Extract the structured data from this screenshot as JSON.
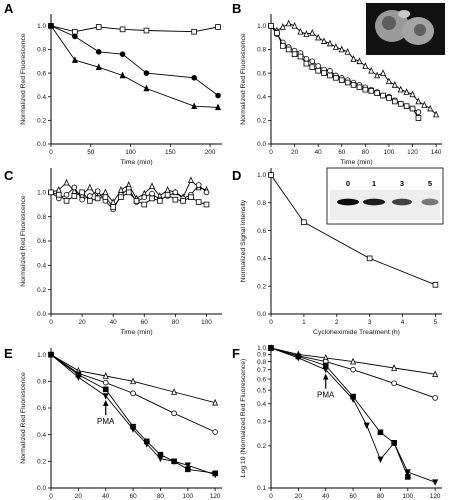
{
  "chart_data": [
    {
      "panel": "A",
      "type": "line",
      "xlabel": "Time (min)",
      "ylabel": "Normalized Red Fluorescence",
      "xlim": [
        0,
        215
      ],
      "ylim": [
        0.0,
        1.1
      ],
      "xticks": [
        "0",
        "50",
        "100",
        "150",
        "200"
      ],
      "yticks": [
        "0.0",
        "0.2",
        "0.4",
        "0.6",
        "0.8",
        "1.0"
      ],
      "series": [
        {
          "marker": "square-open",
          "x": [
            0,
            30,
            60,
            90,
            120,
            180,
            210
          ],
          "y": [
            1.0,
            0.95,
            0.99,
            0.97,
            0.96,
            0.95,
            0.99
          ]
        },
        {
          "marker": "circle-filled",
          "x": [
            0,
            30,
            60,
            90,
            120,
            180,
            210
          ],
          "y": [
            1.0,
            0.91,
            0.78,
            0.76,
            0.6,
            0.56,
            0.41
          ]
        },
        {
          "marker": "triangle-filled",
          "x": [
            0,
            30,
            60,
            90,
            120,
            180,
            210
          ],
          "y": [
            1.0,
            0.71,
            0.65,
            0.58,
            0.47,
            0.32,
            0.31
          ]
        }
      ]
    },
    {
      "panel": "B",
      "type": "line",
      "xlabel": "Time (min)",
      "ylabel": "Normalized Red Fluorescence",
      "xlim": [
        0,
        145
      ],
      "ylim": [
        0.0,
        1.1
      ],
      "xticks": [
        "0",
        "20",
        "40",
        "60",
        "80",
        "100",
        "120",
        "140"
      ],
      "yticks": [
        "0.0",
        "0.2",
        "0.4",
        "0.6",
        "0.8",
        "1.0"
      ],
      "series": [
        {
          "marker": "triangle-open",
          "x": [
            0,
            5,
            10,
            15,
            20,
            25,
            30,
            35,
            40,
            45,
            50,
            55,
            60,
            65,
            70,
            75,
            80,
            85,
            90,
            95,
            100,
            105,
            110,
            115,
            120,
            125,
            130,
            135,
            140
          ],
          "y": [
            1.0,
            0.96,
            0.99,
            1.02,
            1.0,
            0.95,
            0.93,
            0.94,
            0.9,
            0.87,
            0.85,
            0.82,
            0.8,
            0.78,
            0.72,
            0.7,
            0.66,
            0.62,
            0.58,
            0.6,
            0.53,
            0.5,
            0.46,
            0.44,
            0.42,
            0.36,
            0.33,
            0.3,
            0.25
          ]
        },
        {
          "marker": "circle-open",
          "x": [
            0,
            5,
            10,
            15,
            20,
            25,
            30,
            35,
            40,
            45,
            50,
            55,
            60,
            65,
            70,
            75,
            80,
            85,
            90,
            95,
            100,
            105,
            110,
            115,
            120,
            125
          ],
          "y": [
            1.0,
            0.93,
            0.86,
            0.82,
            0.79,
            0.77,
            0.72,
            0.7,
            0.66,
            0.63,
            0.62,
            0.58,
            0.56,
            0.54,
            0.52,
            0.5,
            0.48,
            0.46,
            0.44,
            0.41,
            0.4,
            0.37,
            0.34,
            0.32,
            0.3,
            0.27
          ]
        },
        {
          "marker": "square-open",
          "x": [
            0,
            5,
            10,
            15,
            20,
            25,
            30,
            35,
            40,
            45,
            50,
            55,
            60,
            65,
            70,
            75,
            80,
            85,
            90,
            95,
            100,
            105,
            110,
            115,
            120,
            125
          ],
          "y": [
            1.0,
            0.94,
            0.83,
            0.8,
            0.76,
            0.74,
            0.68,
            0.65,
            0.62,
            0.6,
            0.58,
            0.56,
            0.54,
            0.52,
            0.5,
            0.48,
            0.46,
            0.45,
            0.43,
            0.41,
            0.39,
            0.36,
            0.34,
            0.32,
            0.3,
            0.22
          ]
        }
      ]
    },
    {
      "panel": "C",
      "type": "line",
      "xlabel": "Time (min)",
      "ylabel": "Normalized Red Fluorescence",
      "xlim": [
        0,
        110
      ],
      "ylim": [
        0.0,
        1.2
      ],
      "xticks": [
        "0",
        "20",
        "40",
        "60",
        "80",
        "100"
      ],
      "yticks": [
        "0.0",
        "0.2",
        "0.4",
        "0.6",
        "0.8",
        "1.0"
      ],
      "series": [
        {
          "marker": "triangle-open",
          "x": [
            0,
            5,
            10,
            15,
            20,
            25,
            30,
            35,
            40,
            45,
            50,
            55,
            60,
            65,
            70,
            75,
            80,
            85,
            90,
            95,
            100
          ],
          "y": [
            1.0,
            1.02,
            1.08,
            1.01,
            0.98,
            1.04,
            0.96,
            1.0,
            0.92,
            1.02,
            1.06,
            0.95,
            0.99,
            1.05,
            0.97,
            1.02,
            1.0,
            0.96,
            1.1,
            1.04,
            1.02
          ]
        },
        {
          "marker": "circle-open",
          "x": [
            0,
            5,
            10,
            15,
            20,
            25,
            30,
            35,
            40,
            45,
            50,
            55,
            60,
            65,
            70,
            75,
            80,
            85,
            90,
            95,
            100
          ],
          "y": [
            1.0,
            0.95,
            0.98,
            1.04,
            0.94,
            0.97,
            1.01,
            0.93,
            0.86,
            0.98,
            1.03,
            0.92,
            0.96,
            0.99,
            0.94,
            0.97,
            1.0,
            0.95,
            0.98,
            1.06,
            1.0
          ]
        },
        {
          "marker": "square-open",
          "x": [
            0,
            5,
            10,
            15,
            20,
            25,
            30,
            35,
            40,
            45,
            50,
            55,
            60,
            65,
            70,
            75,
            80,
            85,
            90,
            95,
            100
          ],
          "y": [
            1.0,
            0.98,
            0.93,
            0.97,
            1.0,
            0.93,
            0.95,
            0.96,
            0.88,
            0.96,
            1.0,
            0.93,
            0.9,
            0.95,
            0.93,
            0.98,
            0.94,
            0.93,
            0.96,
            0.92,
            0.9
          ]
        }
      ]
    },
    {
      "panel": "D",
      "type": "line",
      "xlabel": "Cycloheximide Treatment (h)",
      "ylabel": "Normalized Signal Intensity",
      "xlim": [
        0,
        5.2
      ],
      "ylim": [
        0.0,
        1.05
      ],
      "xticks": [
        "0",
        "1",
        "2",
        "3",
        "4",
        "5"
      ],
      "yticks": [
        "0.0",
        "0.2",
        "0.4",
        "0.6",
        "0.8",
        "1.0"
      ],
      "series": [
        {
          "marker": "square-open",
          "x": [
            0,
            1,
            3,
            5
          ],
          "y": [
            1.0,
            0.66,
            0.4,
            0.21
          ]
        }
      ],
      "blot_lanes": [
        "0",
        "1",
        "3",
        "5"
      ]
    },
    {
      "panel": "E",
      "type": "line",
      "xlabel": "Time (min)",
      "ylabel": "Normalized Red Fluorescence",
      "xlim": [
        0,
        125
      ],
      "ylim": [
        0.0,
        1.05
      ],
      "xticks": [
        "0",
        "20",
        "40",
        "60",
        "80",
        "100",
        "120"
      ],
      "yticks": [
        "0.0",
        "0.2",
        "0.4",
        "0.6",
        "0.8",
        "1.0"
      ],
      "annotation": "PMA",
      "series": [
        {
          "marker": "triangle-open",
          "x": [
            0,
            20,
            40,
            60,
            90,
            120
          ],
          "y": [
            1.0,
            0.88,
            0.84,
            0.8,
            0.72,
            0.64
          ]
        },
        {
          "marker": "circle-open",
          "x": [
            0,
            20,
            40,
            60,
            90,
            120
          ],
          "y": [
            1.0,
            0.86,
            0.79,
            0.71,
            0.56,
            0.42
          ]
        },
        {
          "marker": "square-filled",
          "x": [
            0,
            20,
            40,
            60,
            70,
            80,
            90,
            100,
            120
          ],
          "y": [
            1.0,
            0.85,
            0.74,
            0.46,
            0.35,
            0.25,
            0.2,
            0.14,
            0.11
          ]
        },
        {
          "marker": "triangle-down-filled",
          "x": [
            0,
            20,
            40,
            60,
            70,
            80,
            90,
            100,
            120
          ],
          "y": [
            1.0,
            0.83,
            0.69,
            0.44,
            0.33,
            0.22,
            0.2,
            0.17,
            0.1
          ]
        }
      ]
    },
    {
      "panel": "F",
      "type": "line",
      "xlabel": "Time (min)",
      "ylabel": "Log 10 (Normalized Red Fluorescence)",
      "xscale": "linear",
      "yscale": "log",
      "xlim": [
        0,
        125
      ],
      "ylim": [
        0.1,
        1.0
      ],
      "xticks": [
        "0",
        "20",
        "40",
        "60",
        "80",
        "100",
        "120"
      ],
      "yticks": [
        "0.1",
        "0.2",
        "0.3",
        "0.4",
        "0.5",
        "0.6",
        "0.7",
        "0.8",
        "0.9",
        "1.0"
      ],
      "annotation": "PMA",
      "series": [
        {
          "marker": "triangle-open",
          "x": [
            0,
            20,
            40,
            60,
            90,
            120
          ],
          "y": [
            1.0,
            0.9,
            0.85,
            0.8,
            0.72,
            0.65
          ]
        },
        {
          "marker": "circle-open",
          "x": [
            0,
            20,
            40,
            60,
            90,
            120
          ],
          "y": [
            1.0,
            0.88,
            0.8,
            0.7,
            0.56,
            0.44
          ]
        },
        {
          "marker": "square-filled",
          "x": [
            0,
            20,
            40,
            60,
            80,
            90,
            100
          ],
          "y": [
            1.0,
            0.87,
            0.75,
            0.45,
            0.25,
            0.21,
            0.12
          ]
        },
        {
          "marker": "triangle-down-filled",
          "x": [
            0,
            20,
            40,
            60,
            70,
            80,
            90,
            100,
            120
          ],
          "y": [
            1.0,
            0.85,
            0.7,
            0.43,
            0.28,
            0.16,
            0.21,
            0.13,
            0.11
          ]
        }
      ]
    }
  ]
}
